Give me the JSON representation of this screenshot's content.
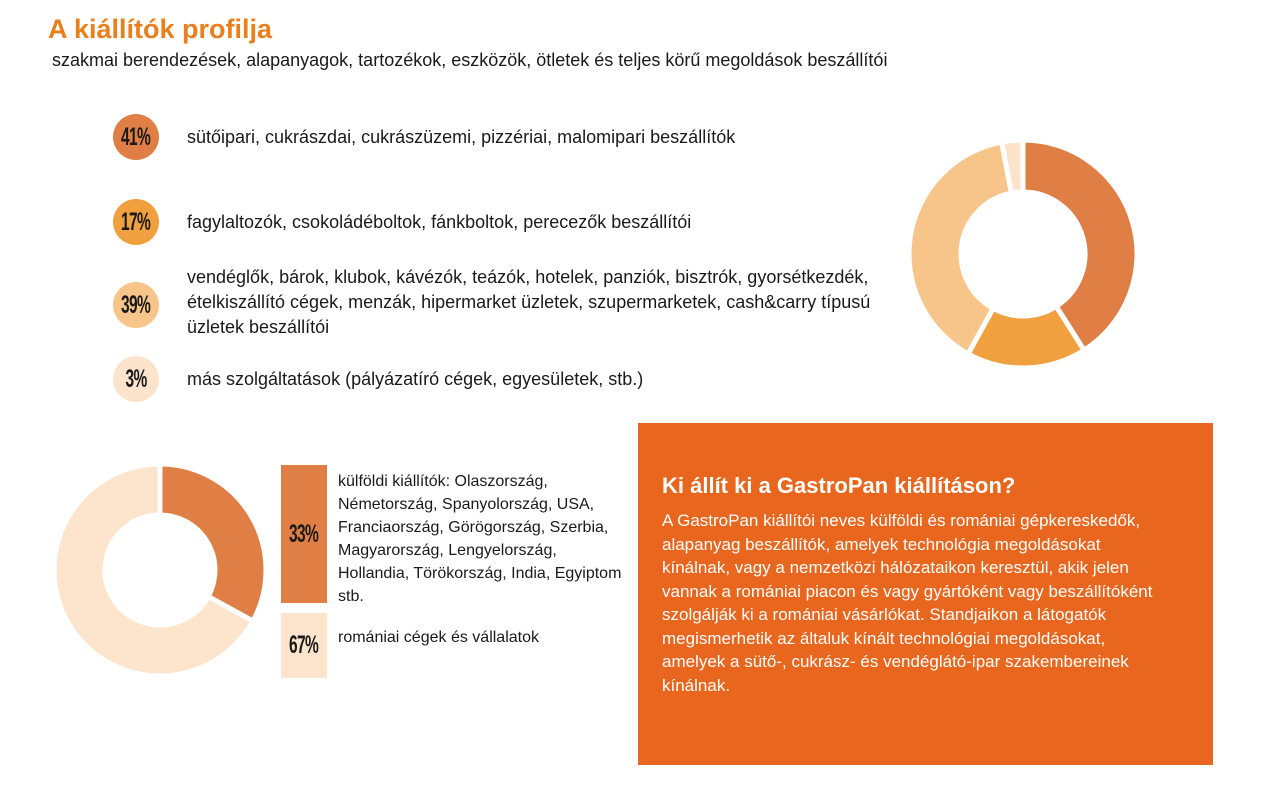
{
  "header": {
    "title": "A kiállítók profilja",
    "subtitle": "szakmai berendezések, alapanyagok, tartozékok, eszközök, ötletek és teljes körű megoldások beszállítói"
  },
  "chart_data": [
    {
      "type": "donut",
      "categories": [
        "sütőipari, cukrászdai, cukrászüzemi, pizzériai, malomipari beszállítók",
        "fagylaltozók, csokoládéboltok, fánkboltok, perecezők beszállítói",
        "vendéglők, bárok, klubok, kávézók, teázók, hotelek, panziók, bisztrók, gyorsétkezdék, ételkiszállító cégek, menzák, hipermarket üzletek, szupermarketek, cash&carry típusú üzletek beszállítói",
        "más szolgáltatások (pályázatíró cégek, egyesületek, stb.)"
      ],
      "values": [
        41,
        17,
        39,
        3
      ],
      "value_labels": [
        "41%",
        "17%",
        "39%",
        "3%"
      ],
      "colors": [
        "#e07f45",
        "#f0a03e",
        "#f7c589",
        "#fce4cc"
      ]
    },
    {
      "type": "donut",
      "categories": [
        "külföldi kiállítók: Olaszország, Németország, Spanyolország, USA, Franciaország, Görögország, Szerbia, Magyarország, Lengyelország, Hollandia, Törökország, India, Egyiptom stb.",
        "romániai cégek és vállalatok"
      ],
      "values": [
        33,
        67
      ],
      "value_labels": [
        "33%",
        "67%"
      ],
      "colors": [
        "#e07f45",
        "#fce5cc"
      ]
    }
  ],
  "info_box": {
    "title": "Ki állít ki a GastroPan kiállításon?",
    "text": "A GastroPan kiállítói neves külföldi és romániai gépkereskedők, alapanyag beszállítók, amelyek technológia megoldásokat kínálnak, vagy a nemzetközi hálózataikon keresztül, akik jelen vannak a romániai piacon és vagy gyártóként vagy beszállítóként szolgálják ki a romániai vásárlókat. Standjaikon a látogatók megismerhetik az általuk kínált technológiai megoldásokat, amelyek a sütő-, cukrász- és vendéglátó-ipar szakembereinek kínálnak."
  }
}
